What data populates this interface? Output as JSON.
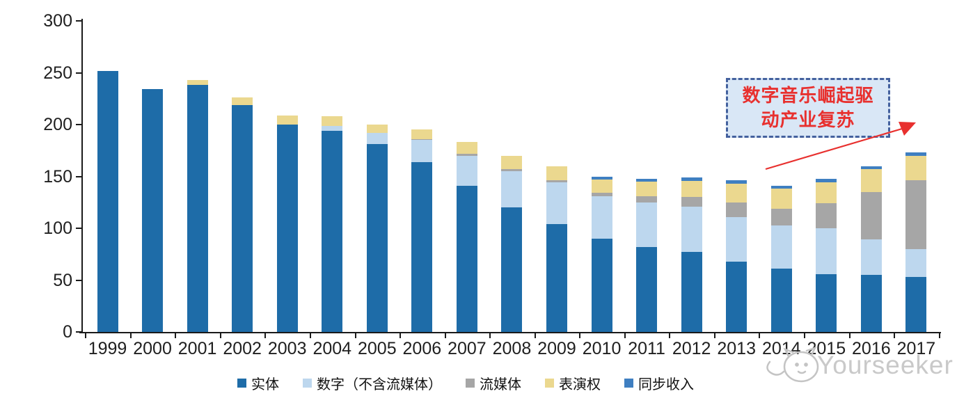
{
  "chart_data": {
    "type": "bar",
    "stacked": true,
    "title": "",
    "xlabel": "",
    "ylabel": "",
    "ylim": [
      0,
      300
    ],
    "yticks": [
      0,
      50,
      100,
      150,
      200,
      250,
      300
    ],
    "grid": false,
    "legend_position": "bottom",
    "x": [
      "1999",
      "2000",
      "2001",
      "2002",
      "2003",
      "2004",
      "2005",
      "2006",
      "2007",
      "2008",
      "2009",
      "2010",
      "2011",
      "2012",
      "2013",
      "2014",
      "2015",
      "2016",
      "2017"
    ],
    "series": [
      {
        "name": "实体",
        "color": "#1e6ca8",
        "values": [
          252,
          234,
          238,
          219,
          200,
          194,
          181,
          164,
          141,
          120,
          104,
          90,
          82,
          77,
          68,
          61,
          56,
          55,
          53
        ]
      },
      {
        "name": "数字（不含流媒体）",
        "color": "#bdd7ee",
        "values": [
          0,
          0,
          0,
          0,
          0,
          5,
          11,
          21,
          29,
          35,
          40,
          41,
          43,
          44,
          43,
          42,
          44,
          34,
          27
        ]
      },
      {
        "name": "流媒体",
        "color": "#a6a6a6",
        "values": [
          0,
          0,
          0,
          0,
          0,
          0,
          0,
          1,
          2,
          2,
          2,
          3,
          6,
          9,
          14,
          16,
          24,
          46,
          66
        ]
      },
      {
        "name": "表演权",
        "color": "#ebd88f",
        "values": [
          0,
          0,
          5,
          7,
          9,
          9,
          8,
          9,
          11,
          13,
          14,
          13,
          14,
          16,
          18,
          19,
          20,
          22,
          24
        ]
      },
      {
        "name": "同步收入",
        "color": "#3f7fc1",
        "values": [
          0,
          0,
          0,
          0,
          0,
          0,
          0,
          0,
          0,
          0,
          0,
          3,
          3,
          3,
          3,
          3,
          4,
          3,
          3
        ]
      }
    ]
  },
  "annotation": {
    "line1": "数字音乐崛起驱",
    "line2": "动产业复苏",
    "text_color": "#e8302e",
    "border_color": "#44619e",
    "fill_color": "#d9e7f6",
    "arrow_color": "#e8302e"
  },
  "watermark": {
    "text": "Yourseeker",
    "icon": "cat-mascot-icon",
    "color": "#c9c9c9"
  },
  "axis": {
    "color": "#1a1a1a",
    "label_color": "#1f1f1f"
  }
}
